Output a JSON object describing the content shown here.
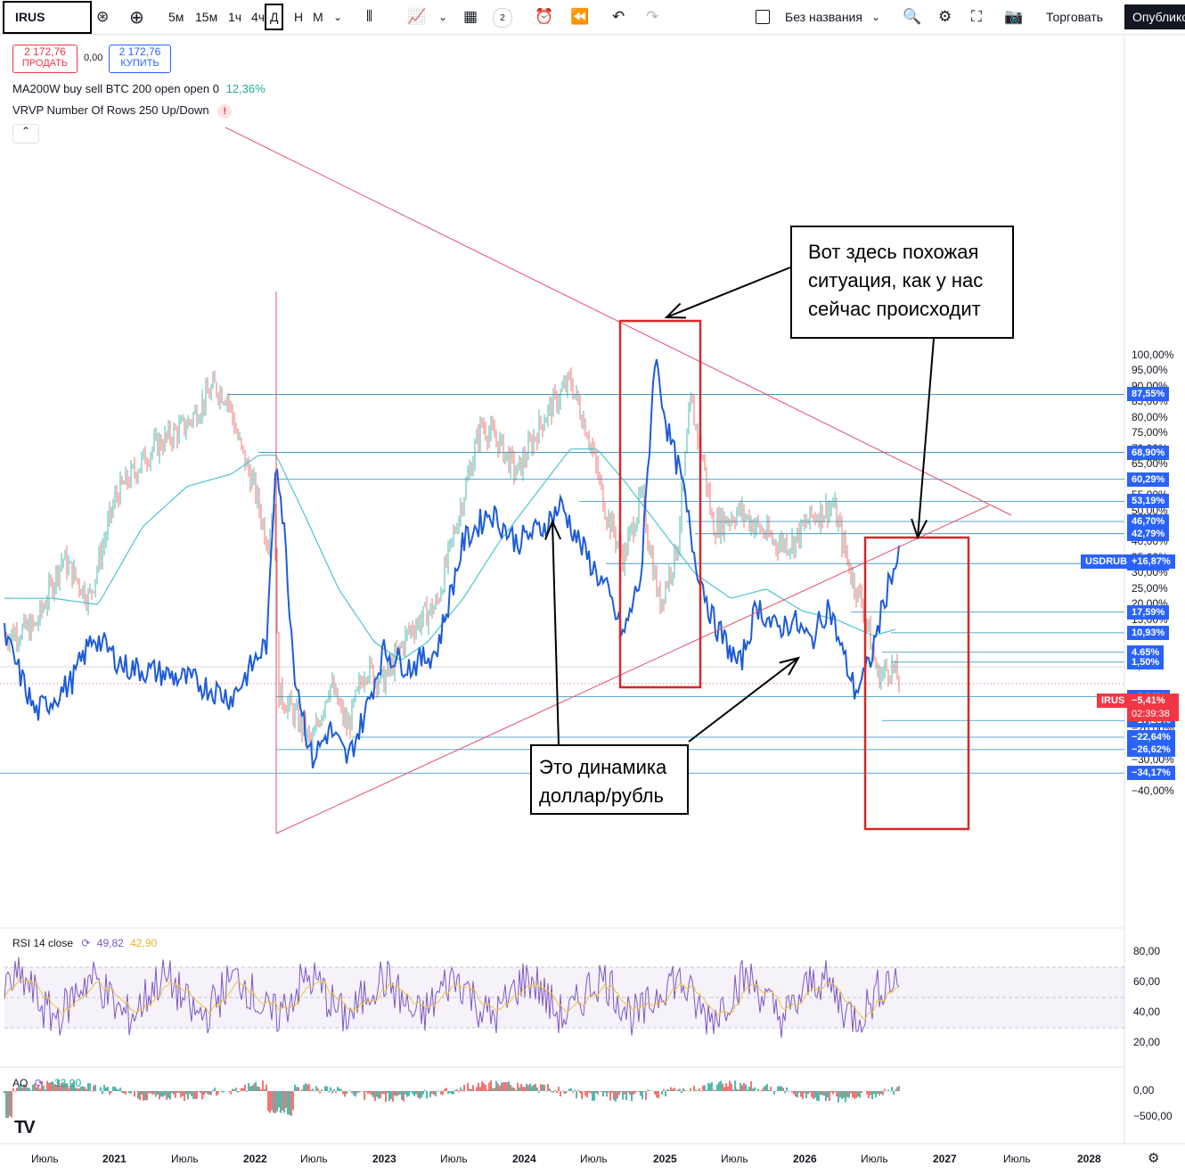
{
  "toolbar": {
    "symbol": "IRUS",
    "timeframes": [
      "5м",
      "15м",
      "1ч",
      "4ч",
      "Д",
      "Н",
      "М"
    ],
    "active_timeframe": "Д",
    "indicator_count": "2",
    "layout_name": "Без названия",
    "trade_label": "Торговать",
    "publish_label": "Опублико"
  },
  "trade_panel": {
    "sell_price": "2 172,76",
    "sell_label": "ПРОДАТЬ",
    "spread": "0,00",
    "buy_price": "2 172,76",
    "buy_label": "КУПИТЬ"
  },
  "indicators": {
    "ma_label": "MA200W buy sell BTC 200 open open 0",
    "ma_value": "12,36%",
    "vrvp_label": "VRVP Number Of Rows 250 Up/Down",
    "vrvp_warning": "!",
    "rsi_label": "RSI 14 close",
    "rsi_value1": "49,82",
    "rsi_value2": "42,90",
    "ao_label": "AO",
    "ao_value": "−33,00"
  },
  "price_axis": [
    "100,00%",
    "95,00%",
    "90,00%",
    "85,00%",
    "80,00%",
    "75,00%",
    "70,00%",
    "65,00%",
    "55,00%",
    "50,00%",
    "45,00%",
    "40,00%",
    "35,00%",
    "30,00%",
    "25,00%",
    "20,00%",
    "15,00%",
    "10,00%",
    "0,00%",
    "−15,00%",
    "−20,00%",
    "−25,00%",
    "−30,00%",
    "−40,00%"
  ],
  "level_tags": [
    "87,55%",
    "68,90%",
    "60,29%",
    "53,19%",
    "46,70%",
    "42,79%",
    "33,19%",
    "17,59%",
    "10,93%",
    "4,65%",
    "1,50%",
    "−9,64%",
    "−17,26%",
    "−22,64%",
    "−26,62%",
    "−34,17%"
  ],
  "usdrub_tag": {
    "name": "USDRUB",
    "value": "+16,87%"
  },
  "irus_tag": {
    "name": "IRUS",
    "value": "−5,41%",
    "countdown": "02:39:38"
  },
  "rsi_axis": [
    "80,00",
    "60,00",
    "40,00",
    "20,00"
  ],
  "ao_axis": [
    "0,00",
    "−500,00"
  ],
  "time_axis": [
    "Июль",
    "2021",
    "Июль",
    "2022",
    "Июль",
    "2023",
    "Июль",
    "2024",
    "Июль",
    "2025",
    "Июль",
    "2026",
    "Июль",
    "2027",
    "Июль",
    "2028"
  ],
  "annotations": {
    "note_top": [
      "Вот здесь похожая",
      "ситуация, как у нас",
      "сейчас происходит"
    ],
    "note_bottom": [
      "Это динамика",
      "доллар/рубль"
    ]
  },
  "colors": {
    "level_line": "#2a8fbd",
    "ma_line": "#4fc3d2",
    "usdrub_line": "#1e5bd8",
    "candle_up": "#26a69a",
    "candle_down": "#ef5350",
    "triangle": "#e0526a",
    "highlight_box": "#d62828",
    "rsi_line": "#7e57c2",
    "rsi_ma": "#f0c040",
    "tag_blue": "#2962ff",
    "tag_red": "#f23645"
  }
}
